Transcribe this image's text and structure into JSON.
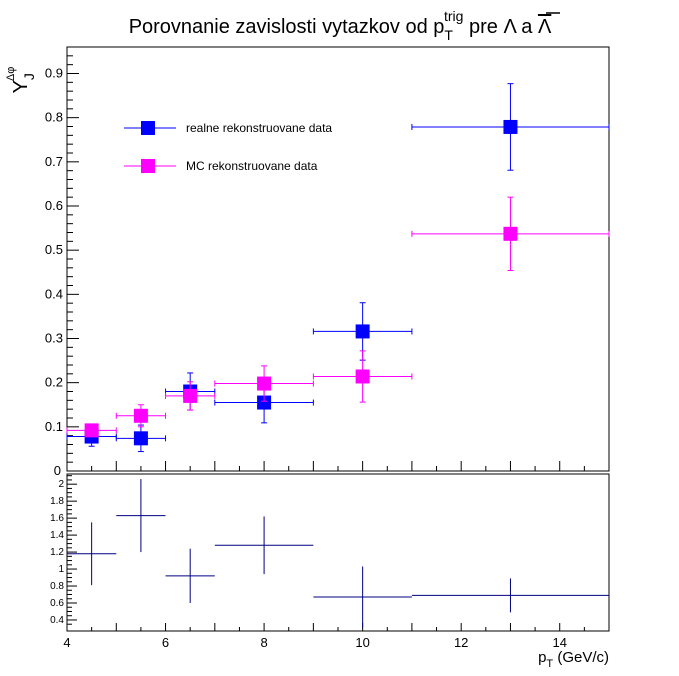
{
  "chart_data": [
    {
      "type": "scatter",
      "title": {
        "main": "Porovnanie zavislosti vytazkov od p",
        "sub": "T",
        "sup": "trig",
        "rest": " pre Λ a ",
        "bar_symbol": "Λ"
      },
      "ylabel": {
        "main": "Y",
        "sub": "J",
        "sup": "Δφ"
      },
      "xlim": [
        4,
        15
      ],
      "ylim": [
        0,
        0.96
      ],
      "yticks": [
        {
          "v": 0.1,
          "label": "0.1"
        },
        {
          "v": 0.2,
          "label": "0.2"
        },
        {
          "v": 0.3,
          "label": "0.3"
        },
        {
          "v": 0.4,
          "label": "0.4"
        },
        {
          "v": 0.5,
          "label": "0.5"
        },
        {
          "v": 0.6,
          "label": "0.6"
        },
        {
          "v": 0.7,
          "label": "0.7"
        },
        {
          "v": 0.8,
          "label": "0.8"
        },
        {
          "v": 0.9,
          "label": "0.9"
        }
      ],
      "legend_position": "top-left",
      "series": [
        {
          "name": "realne rekonstruovane data",
          "color": "#0000ff",
          "points": [
            {
              "x": 4.5,
              "y": 0.078,
              "xerr": 0.5,
              "yerr": 0.022
            },
            {
              "x": 5.5,
              "y": 0.074,
              "xerr": 0.5,
              "yerr": 0.03
            },
            {
              "x": 6.5,
              "y": 0.18,
              "xerr": 0.5,
              "yerr": 0.042
            },
            {
              "x": 8.0,
              "y": 0.155,
              "xerr": 1.0,
              "yerr": 0.046
            },
            {
              "x": 10.0,
              "y": 0.316,
              "xerr": 1.0,
              "yerr": 0.065
            },
            {
              "x": 13.0,
              "y": 0.779,
              "xerr": 2.0,
              "yerr": 0.098
            }
          ]
        },
        {
          "name": "MC rekonstruovane data",
          "color": "#ff00ff",
          "points": [
            {
              "x": 4.5,
              "y": 0.092,
              "xerr": 0.5,
              "yerr": 0.012
            },
            {
              "x": 5.5,
              "y": 0.125,
              "xerr": 0.5,
              "yerr": 0.025
            },
            {
              "x": 6.5,
              "y": 0.17,
              "xerr": 0.5,
              "yerr": 0.032
            },
            {
              "x": 8.0,
              "y": 0.198,
              "xerr": 1.0,
              "yerr": 0.04
            },
            {
              "x": 10.0,
              "y": 0.214,
              "xerr": 1.0,
              "yerr": 0.058
            },
            {
              "x": 13.0,
              "y": 0.537,
              "xerr": 2.0,
              "yerr": 0.083
            }
          ]
        }
      ],
      "cut_zero_label": "0"
    },
    {
      "type": "scatter",
      "xlabel": {
        "main": "p",
        "sub": "T",
        "rest": " (GeV/c)"
      },
      "xlim": [
        4,
        15
      ],
      "ylim": [
        0.27,
        2.12
      ],
      "xticks": [
        {
          "v": 4,
          "label": "4"
        },
        {
          "v": 6,
          "label": "6"
        },
        {
          "v": 8,
          "label": "8"
        },
        {
          "v": 10,
          "label": "10"
        },
        {
          "v": 12,
          "label": "12"
        },
        {
          "v": 14,
          "label": "14"
        }
      ],
      "yticks": [
        {
          "v": 0.4,
          "label": "0.4"
        },
        {
          "v": 0.6,
          "label": "0.6"
        },
        {
          "v": 0.8,
          "label": "0.8"
        },
        {
          "v": 1.0,
          "label": "1"
        },
        {
          "v": 1.2,
          "label": "1.2"
        },
        {
          "v": 1.4,
          "label": "1.4"
        },
        {
          "v": 1.6,
          "label": "1.6"
        },
        {
          "v": 1.8,
          "label": "1.8"
        },
        {
          "v": 2.0,
          "label": "2"
        }
      ],
      "series": [
        {
          "color": "#000080",
          "points": [
            {
              "x": 4.5,
              "y": 1.18,
              "xerr": 0.5,
              "yerr": 0.37
            },
            {
              "x": 5.5,
              "y": 1.63,
              "xerr": 0.5,
              "yerr": 0.43
            },
            {
              "x": 6.5,
              "y": 0.92,
              "xerr": 0.5,
              "yerr": 0.32
            },
            {
              "x": 8.0,
              "y": 1.28,
              "xerr": 1.0,
              "yerr": 0.34
            },
            {
              "x": 10.0,
              "y": 0.67,
              "xerr": 1.0,
              "yerr": 0.36
            },
            {
              "x": 13.0,
              "y": 0.69,
              "xerr": 2.0,
              "yerr": 0.2
            }
          ]
        }
      ]
    }
  ]
}
